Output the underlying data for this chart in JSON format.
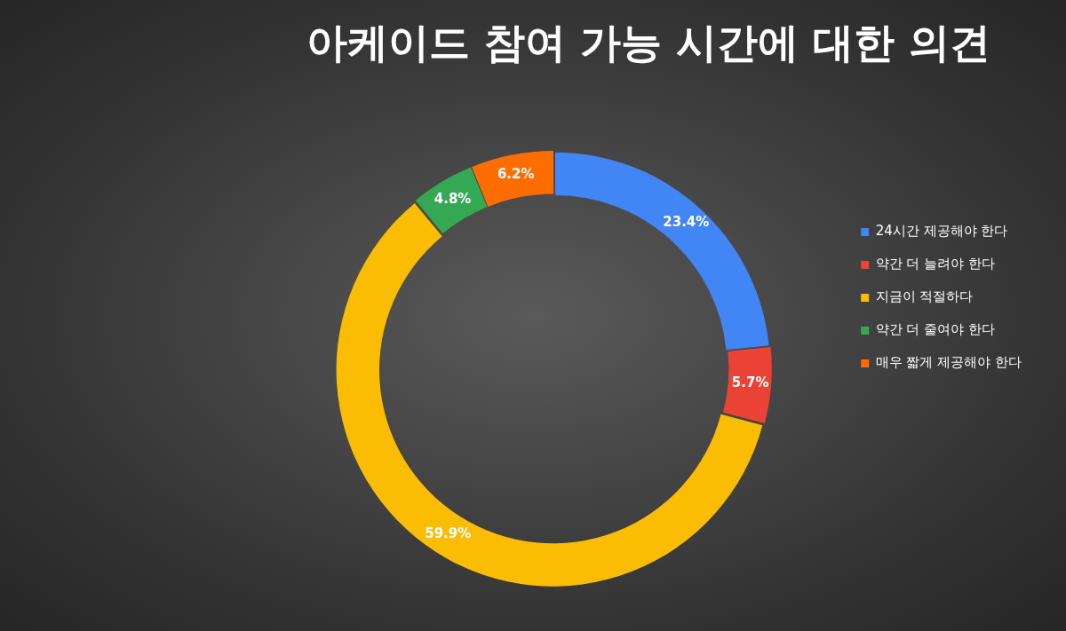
{
  "chart_data": {
    "type": "donut",
    "title": "아케이드 참여 가능 시간에 대한 의견",
    "categories": [
      "24시간 제공해야 한다",
      "약간 더 늘려야 한다",
      "지금이 적절하다",
      "약간 더 줄여야 한다",
      "매우 짧게 제공해야 한다"
    ],
    "values": [
      23.4,
      5.7,
      59.9,
      4.8,
      6.2
    ],
    "colors": [
      "#4285f4",
      "#ea4335",
      "#fbbc04",
      "#34a853",
      "#ff6d01"
    ],
    "value_labels": [
      "23.4%",
      "5.7%",
      "59.9%",
      "4.8%",
      "6.2%"
    ],
    "legend": "right"
  }
}
